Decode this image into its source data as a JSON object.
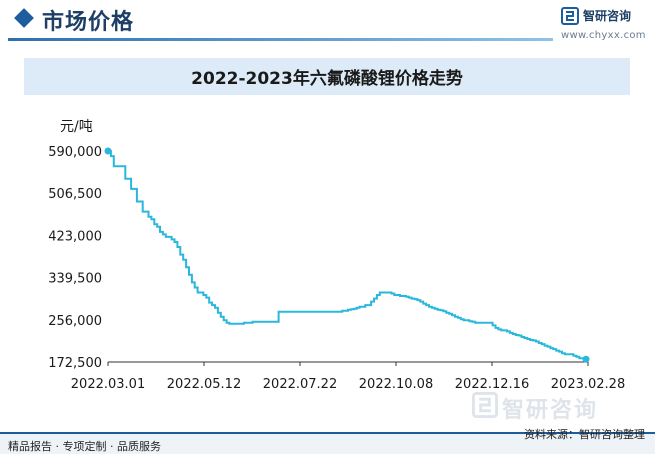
{
  "header": {
    "title": "市场价格"
  },
  "brand": {
    "name": "智研咨询",
    "url": "www.chyxx.com"
  },
  "chart_data": {
    "type": "line",
    "title": "2022-2023年六氟磷酸锂价格走势",
    "ylabel": "元/吨",
    "xlabel": "",
    "ylim": [
      172500,
      590000
    ],
    "yticks": [
      "590,000",
      "506,500",
      "423,000",
      "339,500",
      "256,000",
      "172,500"
    ],
    "ytick_values": [
      590000,
      506500,
      423000,
      339500,
      256000,
      172500
    ],
    "xticks": [
      "2022.03.01",
      "2022.05.12",
      "2022.07.22",
      "2022.10.08",
      "2022.12.16",
      "2023.02.28"
    ],
    "line_color": "#2bb7dc",
    "series": [
      {
        "values": [
          590000,
          580000,
          560000,
          560000,
          560000,
          560000,
          535000,
          535000,
          515000,
          515000,
          490000,
          490000,
          470000,
          470000,
          460000,
          455000,
          445000,
          440000,
          430000,
          425000,
          420000,
          420000,
          415000,
          410000,
          400000,
          385000,
          375000,
          360000,
          345000,
          330000,
          320000,
          310000,
          310000,
          305000,
          300000,
          290000,
          285000,
          280000,
          270000,
          262000,
          255000,
          250000,
          248000,
          248000,
          248000,
          248000,
          248000,
          250000,
          250000,
          250000,
          252000,
          252000,
          252000,
          252000,
          252000,
          252000,
          252000,
          252000,
          252000,
          272000,
          272000,
          272000,
          272000,
          272000,
          272000,
          272000,
          272000,
          272000,
          272000,
          272000,
          272000,
          272000,
          272000,
          272000,
          272000,
          272000,
          272000,
          272000,
          272000,
          272000,
          272000,
          274000,
          274000,
          276000,
          277000,
          278000,
          280000,
          282000,
          282000,
          285000,
          285000,
          292000,
          298000,
          305000,
          310000,
          310000,
          310000,
          310000,
          308000,
          305000,
          305000,
          303000,
          303000,
          302000,
          300000,
          298000,
          297000,
          295000,
          292000,
          288000,
          285000,
          282000,
          280000,
          278000,
          276000,
          275000,
          273000,
          270000,
          268000,
          265000,
          262000,
          260000,
          257000,
          255000,
          255000,
          253000,
          252000,
          250000,
          250000,
          250000,
          250000,
          250000,
          250000,
          245000,
          240000,
          237000,
          235000,
          235000,
          233000,
          230000,
          228000,
          226000,
          225000,
          222000,
          220000,
          218000,
          216000,
          215000,
          213000,
          210000,
          208000,
          205000,
          203000,
          200000,
          198000,
          195000,
          193000,
          190000,
          188000,
          188000,
          188000,
          185000,
          183000,
          180000,
          180000,
          180000,
          178000
        ]
      }
    ]
  },
  "watermark": {
    "name": "智研咨询"
  },
  "footer": {
    "left": "精品报告 · 专项定制 · 品质服务",
    "source": "资料来源：智研咨询整理"
  }
}
